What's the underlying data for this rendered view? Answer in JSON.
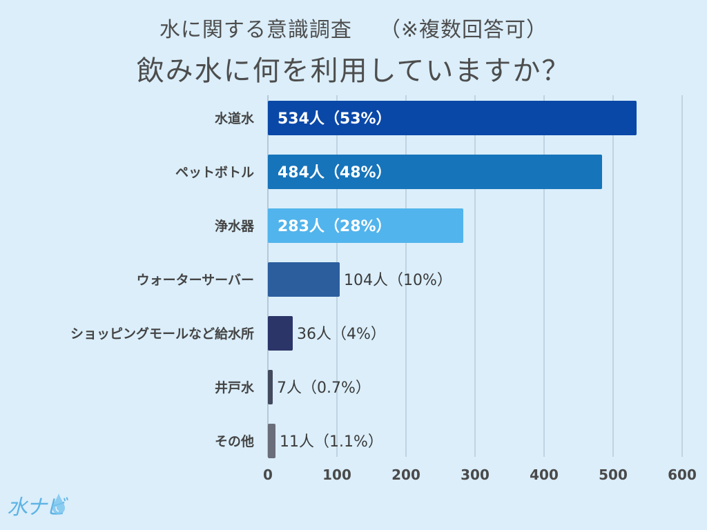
{
  "chart_data": {
    "type": "bar",
    "orientation": "horizontal",
    "title_line1": "水に関する意識調査",
    "title_note": "（※複数回答可）",
    "title_line2": "飲み水に何を利用していますか？",
    "categories": [
      "水道水",
      "ペットボトル",
      "浄水器",
      "ウォーターサーバー",
      "ショッピングモールなど給水所",
      "井戸水",
      "その他"
    ],
    "values": [
      534,
      484,
      283,
      104,
      36,
      7,
      11
    ],
    "labels": [
      "534人（53%）",
      "484人（48%）",
      "283人（28%）",
      "104人（10%）",
      "36人（4%）",
      "7人（0.7%）",
      "11人（1.1%）"
    ],
    "colors": [
      "#0a48a8",
      "#1674ba",
      "#52b4ec",
      "#2c5e9e",
      "#2c3568",
      "#424a5e",
      "#6a6e7a"
    ],
    "label_inside": [
      true,
      true,
      true,
      false,
      false,
      false,
      false
    ],
    "xlim": [
      0,
      600
    ],
    "xticks": [
      "0",
      "100",
      "200",
      "300",
      "400",
      "500",
      "600"
    ],
    "grid": true
  },
  "logo": {
    "text": "水ナビ"
  }
}
